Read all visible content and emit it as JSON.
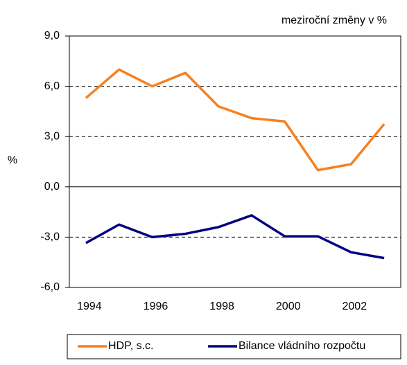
{
  "chart_data": {
    "type": "line",
    "subtitle": "meziroční změny v %",
    "y_label": "%",
    "categories": [
      "1994",
      null,
      "1996",
      null,
      "1998",
      null,
      "2000",
      null,
      "2002",
      null
    ],
    "series": [
      {
        "name": "HDP, s.c.",
        "color": "#f7801f",
        "values": [
          5.3,
          7.0,
          6.0,
          6.8,
          4.8,
          4.1,
          3.9,
          1.0,
          1.35,
          3.75
        ]
      },
      {
        "name": "Bilance vládního rozpočtu",
        "color": "#000080",
        "values": [
          -3.35,
          -2.25,
          -3.0,
          -2.8,
          -2.4,
          -1.7,
          -2.95,
          -2.95,
          -3.9,
          -4.25
        ]
      }
    ],
    "ylim": [
      -6,
      9
    ],
    "yticks": [
      {
        "value": -6,
        "label": "-6,0"
      },
      {
        "value": -3,
        "label": "-3,0"
      },
      {
        "value": 0,
        "label": "0,0"
      },
      {
        "value": 3,
        "label": "3,0"
      },
      {
        "value": 6,
        "label": "6,0"
      },
      {
        "value": 9,
        "label": "9,0"
      }
    ],
    "grid": true,
    "legend": "bottom"
  }
}
